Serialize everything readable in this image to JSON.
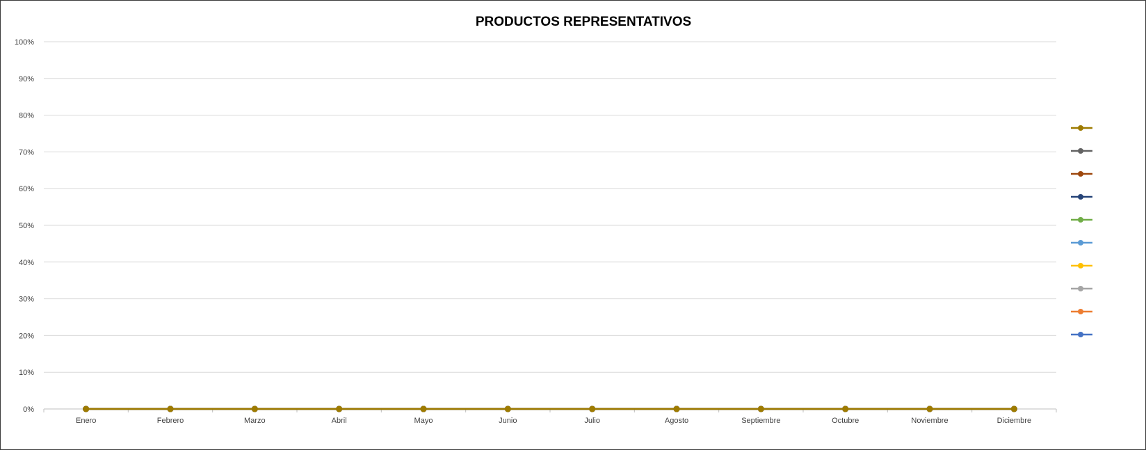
{
  "chart_data": {
    "type": "line",
    "title": "PRODUCTOS REPRESENTATIVOS",
    "xlabel": "",
    "ylabel": "",
    "categories": [
      "Enero",
      "Febrero",
      "Marzo",
      "Abril",
      "Mayo",
      "Junio",
      "Julio",
      "Agosto",
      "Septiembre",
      "Octubre",
      "Noviembre",
      "Diciembre"
    ],
    "y_ticks": [
      "0%",
      "10%",
      "20%",
      "30%",
      "40%",
      "50%",
      "60%",
      "70%",
      "80%",
      "90%",
      "100%"
    ],
    "ylim": [
      0,
      1
    ],
    "grid": true,
    "legend_position": "right",
    "series": [
      {
        "color": "#9e7b00",
        "values": [
          0,
          0,
          0,
          0,
          0,
          0,
          0,
          0,
          0,
          0,
          0,
          0
        ]
      },
      {
        "color": "#636363",
        "values": [
          0,
          0,
          0,
          0,
          0,
          0,
          0,
          0,
          0,
          0,
          0,
          0
        ]
      },
      {
        "color": "#9e480e",
        "values": [
          0,
          0,
          0,
          0,
          0,
          0,
          0,
          0,
          0,
          0,
          0,
          0
        ]
      },
      {
        "color": "#264478",
        "values": [
          0,
          0,
          0,
          0,
          0,
          0,
          0,
          0,
          0,
          0,
          0,
          0
        ]
      },
      {
        "color": "#70ad47",
        "values": [
          0,
          0,
          0,
          0,
          0,
          0,
          0,
          0,
          0,
          0,
          0,
          0
        ]
      },
      {
        "color": "#5b9bd5",
        "values": [
          0,
          0,
          0,
          0,
          0,
          0,
          0,
          0,
          0,
          0,
          0,
          0
        ]
      },
      {
        "color": "#ffc000",
        "values": [
          0,
          0,
          0,
          0,
          0,
          0,
          0,
          0,
          0,
          0,
          0,
          0
        ]
      },
      {
        "color": "#a5a5a5",
        "values": [
          0,
          0,
          0,
          0,
          0,
          0,
          0,
          0,
          0,
          0,
          0,
          0
        ]
      },
      {
        "color": "#ed7d31",
        "values": [
          0,
          0,
          0,
          0,
          0,
          0,
          0,
          0,
          0,
          0,
          0,
          0
        ]
      },
      {
        "color": "#4472c4",
        "values": [
          0,
          0,
          0,
          0,
          0,
          0,
          0,
          0,
          0,
          0,
          0,
          0
        ]
      }
    ]
  }
}
